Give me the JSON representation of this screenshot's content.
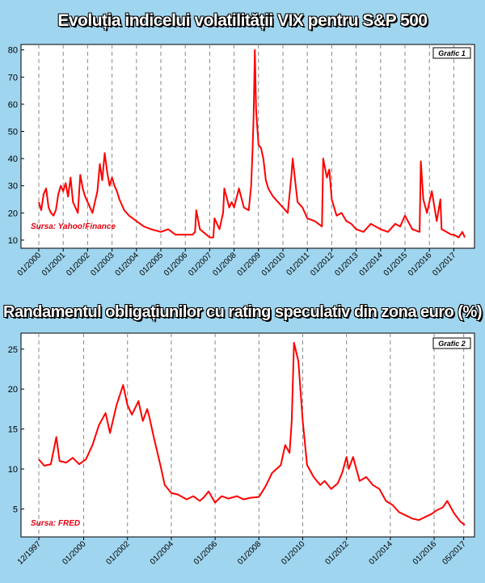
{
  "chart_data": [
    {
      "type": "line",
      "title": "Evoluția indicelui volatilității VIX pentru S&P 500",
      "chart_label": "Grafic 1",
      "source": "Sursa: Yahoo!Finance",
      "y_ticks": [
        10,
        20,
        30,
        40,
        50,
        60,
        70,
        80
      ],
      "ylim": [
        7,
        82
      ],
      "xlim": [
        2000.0,
        2017.45
      ],
      "x_tick_labels": [
        "01/2000",
        "01/2001",
        "01/2002",
        "01/2003",
        "01/2004",
        "01/2005",
        "01/2006",
        "01/2007",
        "01/2008",
        "01/2009",
        "01/2010",
        "01/2011",
        "01/2012",
        "01/2013",
        "01/2014",
        "01/2015",
        "01/2016",
        "01/2017"
      ],
      "x_tick_values": [
        2000,
        2001,
        2002,
        2003,
        2004,
        2005,
        2006,
        2007,
        2008,
        2009,
        2010,
        2011,
        2012,
        2013,
        2014,
        2015,
        2016,
        2017
      ],
      "grid": "vertical dashed",
      "colors": {
        "line": "#ff0000",
        "background": "#ffffff"
      },
      "series": [
        {
          "x": [
            2000.0,
            2000.1,
            2000.2,
            2000.3,
            2000.4,
            2000.5,
            2000.6,
            2000.7,
            2000.8,
            2000.9,
            2001.0,
            2001.1,
            2001.2,
            2001.3,
            2001.4,
            2001.5,
            2001.6,
            2001.7,
            2001.8,
            2001.9,
            2002.0,
            2002.2,
            2002.4,
            2002.5,
            2002.6,
            2002.7,
            2002.8,
            2002.9,
            2003.0,
            2003.1,
            2003.2,
            2003.3,
            2003.5,
            2003.7,
            2004.0,
            2004.3,
            2004.6,
            2005.0,
            2005.3,
            2005.6,
            2006.0,
            2006.3,
            2006.4,
            2006.45,
            2006.6,
            2007.0,
            2007.15,
            2007.2,
            2007.4,
            2007.55,
            2007.6,
            2007.8,
            2007.9,
            2008.0,
            2008.2,
            2008.4,
            2008.6,
            2008.7,
            2008.75,
            2008.8,
            2008.85,
            2008.9,
            2009.0,
            2009.1,
            2009.2,
            2009.3,
            2009.4,
            2009.6,
            2009.8,
            2010.0,
            2010.2,
            2010.35,
            2010.4,
            2010.6,
            2010.8,
            2011.0,
            2011.3,
            2011.6,
            2011.65,
            2011.8,
            2011.9,
            2012.0,
            2012.2,
            2012.4,
            2012.6,
            2012.8,
            2013.0,
            2013.3,
            2013.6,
            2014.0,
            2014.3,
            2014.6,
            2014.8,
            2015.0,
            2015.3,
            2015.6,
            2015.65,
            2015.75,
            2015.9,
            2016.0,
            2016.1,
            2016.3,
            2016.45,
            2016.5,
            2016.7,
            2016.9,
            2017.0,
            2017.2,
            2017.35,
            2017.45
          ],
          "y": [
            24,
            21,
            27,
            29,
            22,
            20,
            19,
            21,
            27,
            30,
            28,
            31,
            26,
            33,
            24,
            22,
            20,
            34,
            29,
            26,
            24,
            20,
            28,
            38,
            32,
            42,
            35,
            30,
            33,
            30,
            28,
            25,
            21,
            19,
            17,
            15,
            14,
            13,
            14,
            12,
            12,
            12,
            13,
            21,
            14,
            11,
            11,
            18,
            14,
            20,
            29,
            22,
            24,
            22,
            29,
            22,
            21,
            30,
            42,
            56,
            80,
            58,
            45,
            44,
            40,
            32,
            29,
            26,
            24,
            22,
            20,
            34,
            40,
            24,
            22,
            18,
            17,
            15,
            40,
            33,
            36,
            25,
            19,
            20,
            17,
            16,
            14,
            13,
            16,
            14,
            13,
            16,
            15,
            19,
            14,
            13,
            39,
            25,
            20,
            24,
            28,
            17,
            25,
            14,
            13,
            12,
            12,
            11,
            13,
            11
          ]
        }
      ]
    },
    {
      "type": "line",
      "title": "Randamentul obligațiunilor cu rating speculativ din zona euro (%)",
      "chart_label": "Grafic 2",
      "source": "Sursa: FRED",
      "y_ticks": [
        5,
        10,
        15,
        20,
        25
      ],
      "ylim": [
        1.5,
        27
      ],
      "xlim": [
        1997.95,
        2017.4
      ],
      "x_tick_labels": [
        "12/1997",
        "01/2000",
        "01/2002",
        "01/2004",
        "01/2006",
        "01/2008",
        "01/2010",
        "01/2012",
        "01/2014",
        "01/2016",
        "05/2017"
      ],
      "x_tick_values": [
        1997.95,
        2000.0,
        2002.0,
        2004.0,
        2006.0,
        2008.0,
        2010.0,
        2012.0,
        2014.0,
        2016.0,
        2017.35
      ],
      "grid": "vertical dashed",
      "colors": {
        "line": "#ff0000",
        "background": "#ffffff"
      },
      "series": [
        {
          "x": [
            1997.95,
            1998.2,
            1998.5,
            1998.75,
            1998.9,
            1999.2,
            1999.5,
            1999.8,
            2000.1,
            2000.4,
            2000.7,
            2001.0,
            2001.2,
            2001.5,
            2001.8,
            2002.0,
            2002.2,
            2002.5,
            2002.7,
            2002.9,
            2003.0,
            2003.2,
            2003.5,
            2003.7,
            2004.0,
            2004.3,
            2004.7,
            2005.0,
            2005.3,
            2005.5,
            2005.7,
            2006.0,
            2006.3,
            2006.6,
            2007.0,
            2007.3,
            2007.6,
            2008.0,
            2008.3,
            2008.6,
            2009.0,
            2009.2,
            2009.4,
            2009.5,
            2009.6,
            2009.8,
            2010.0,
            2010.2,
            2010.5,
            2010.8,
            2011.0,
            2011.3,
            2011.6,
            2011.8,
            2012.0,
            2012.1,
            2012.3,
            2012.6,
            2012.9,
            2013.2,
            2013.5,
            2013.8,
            2014.1,
            2014.4,
            2014.7,
            2015.0,
            2015.3,
            2015.6,
            2015.9,
            2016.1,
            2016.4,
            2016.6,
            2016.9,
            2017.2,
            2017.4
          ],
          "y": [
            11.2,
            10.4,
            10.6,
            14.0,
            11.0,
            10.8,
            11.4,
            10.6,
            11.2,
            13.0,
            15.5,
            17.0,
            14.5,
            18.0,
            20.5,
            18.0,
            16.8,
            18.5,
            16.0,
            17.5,
            16.5,
            14.0,
            10.5,
            8.0,
            7.0,
            6.8,
            6.2,
            6.6,
            6.0,
            6.5,
            7.2,
            5.8,
            6.6,
            6.3,
            6.6,
            6.2,
            6.4,
            6.5,
            7.8,
            9.5,
            10.5,
            13.0,
            12.0,
            16.0,
            25.8,
            23.5,
            16.0,
            10.5,
            9.0,
            8.0,
            8.5,
            7.5,
            8.2,
            9.5,
            11.5,
            10.0,
            11.5,
            8.5,
            9.0,
            8.0,
            7.5,
            6.0,
            5.5,
            4.6,
            4.2,
            3.8,
            3.6,
            4.0,
            4.4,
            4.8,
            5.2,
            6.0,
            4.5,
            3.4,
            3.0
          ]
        }
      ]
    }
  ]
}
